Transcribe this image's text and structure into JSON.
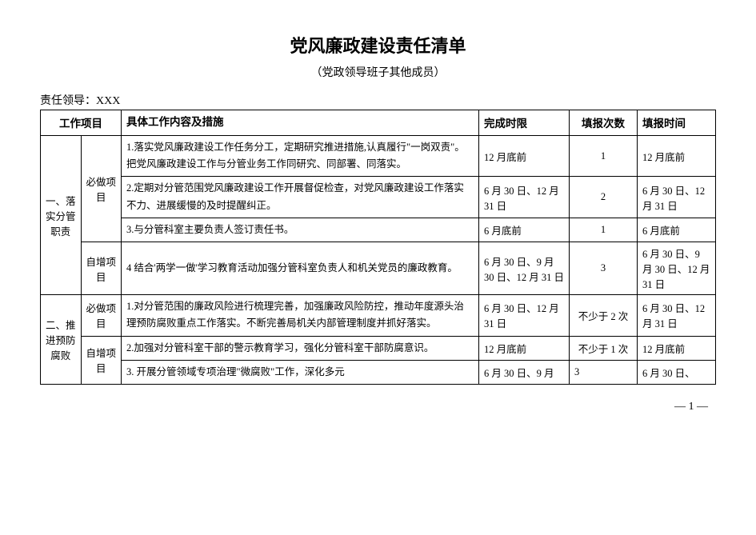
{
  "title": "党风廉政建设责任清单",
  "subtitle": "（党政领导班子其他成员）",
  "leader_label": "责任领导：XXX",
  "headers": {
    "project": "工作项目",
    "content": "具体工作内容及措施",
    "deadline": "完成时限",
    "count": "填报次数",
    "time": "填报时间"
  },
  "section1": {
    "label": "一、落实分管职责",
    "sub_required": "必做项目",
    "sub_selfadd": "自增项目",
    "row1": {
      "content": "1.落实党风廉政建设工作任务分工，定期研究推进措施,认真履行\"一岗双责\"。把党风廉政建设工作与分管业务工作同研究、同部署、同落实。",
      "deadline": "12 月底前",
      "count": "1",
      "time": "12 月底前"
    },
    "row2": {
      "content": "2.定期对分管范围党风廉政建设工作开展督促检查，对党风廉政建设工作落实不力、进展缓慢的及时提醒纠正。",
      "deadline": "6 月 30 日、12 月 31 日",
      "count": "2",
      "time": "6 月 30 日、12 月 31 日"
    },
    "row3": {
      "content": "3.与分管科室主要负责人签订责任书。",
      "deadline": "6 月底前",
      "count": "1",
      "time": "6 月底前"
    },
    "row4": {
      "content": "4 结合'两学一做'学习教育活动加强分管科室负责人和机关党员的廉政教育。",
      "deadline": "6 月 30 日、9 月 30 日、12 月 31 日",
      "count": "3",
      "time": "6 月 30 日、9 月 30 日、12 月 31 日"
    }
  },
  "section2": {
    "label": "二、推进预防腐败",
    "sub_required": "必做项目",
    "sub_selfadd": "自增项目",
    "row1": {
      "content": "1.对分管范围的廉政风险进行梳理完善，加强廉政风险防控，推动年度源头治理预防腐败重点工作落实。不断完善局机关内部管理制度并抓好落实。",
      "deadline": "6 月 30 日、12 月 31 日",
      "count": "不少于 2 次",
      "time": "6 月 30 日、12 月 31 日"
    },
    "row2": {
      "content": "2.加强对分管科室干部的警示教育学习，强化分管科室干部防腐意识。",
      "deadline": "12 月底前",
      "count": "不少于 1 次",
      "time": "12 月底前"
    },
    "row3": {
      "content": "3. 开展分管领域专项治理\"微腐败\"工作，深化多元",
      "deadline": "6 月 30 日、9 月",
      "count": "3",
      "time": "6 月 30 日、"
    }
  },
  "page_number": "— 1 —"
}
